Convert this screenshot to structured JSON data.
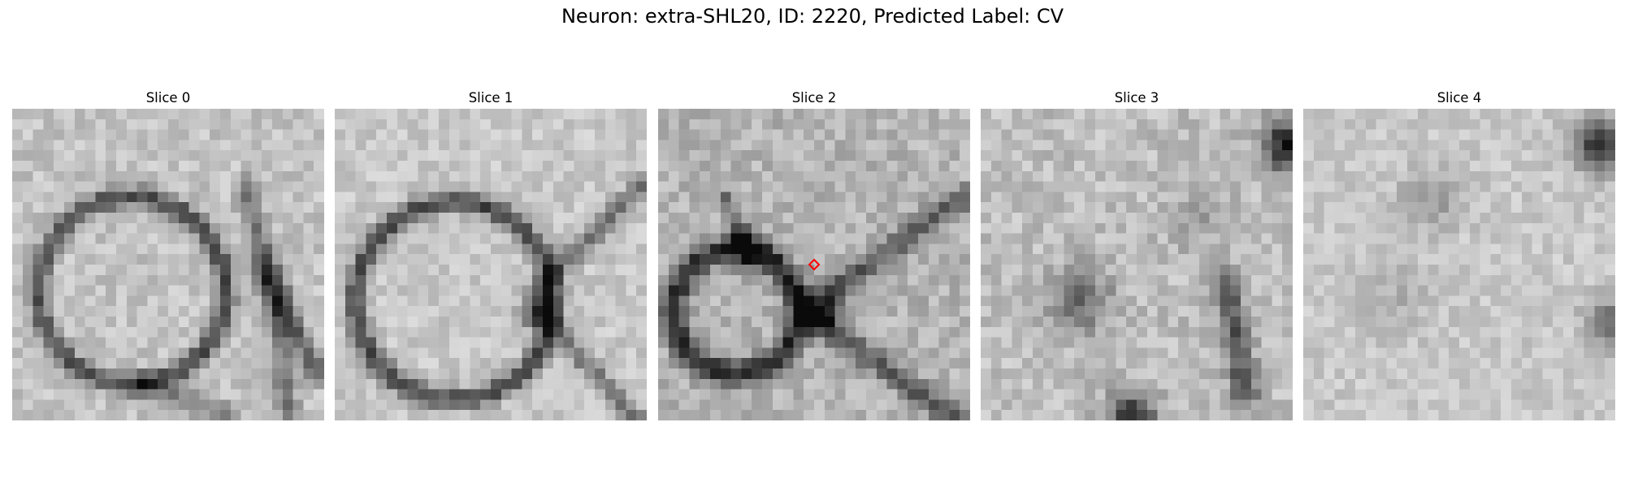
{
  "figure": {
    "suptitle": "Neuron: extra-SHL20, ID: 2220, Predicted Label: CV"
  },
  "panels": [
    {
      "title": "Slice 0",
      "marker": false
    },
    {
      "title": "Slice 1",
      "marker": false
    },
    {
      "title": "Slice 2",
      "marker": true
    },
    {
      "title": "Slice 3",
      "marker": false
    },
    {
      "title": "Slice 4",
      "marker": false
    }
  ],
  "colors": {
    "marker": "#ff0000",
    "colormap": "gray"
  }
}
